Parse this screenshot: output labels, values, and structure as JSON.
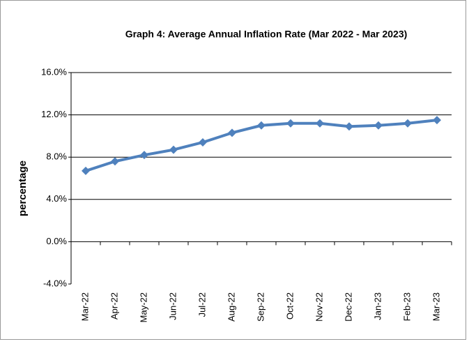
{
  "chart_data": {
    "type": "line",
    "title": "Graph 4: Average Annual Inflation Rate (Mar 2022 - Mar 2023)",
    "ylabel": "percentage",
    "categories": [
      "Mar-22",
      "Apr-22",
      "May-22",
      "Jun-22",
      "Jul-22",
      "Aug-22",
      "Sep-22",
      "Oct-22",
      "Nov-22",
      "Dec-22",
      "Jan-23",
      "Feb-23",
      "Mar-23"
    ],
    "series": [
      {
        "color": "#4f81bd",
        "values": [
          6.7,
          7.6,
          8.2,
          8.7,
          9.4,
          10.3,
          11.0,
          11.2,
          11.2,
          10.9,
          11.0,
          11.2,
          11.5
        ]
      }
    ],
    "ylim": [
      -4,
      16
    ],
    "yticks": [
      {
        "value": -4,
        "label": "-4.0%"
      },
      {
        "value": 0,
        "label": "0.0%"
      },
      {
        "value": 4,
        "label": "4.0%"
      },
      {
        "value": 8,
        "label": "8.0%"
      },
      {
        "value": 12,
        "label": "12.0%"
      },
      {
        "value": 16,
        "label": "16.0%"
      }
    ],
    "grid": true
  }
}
